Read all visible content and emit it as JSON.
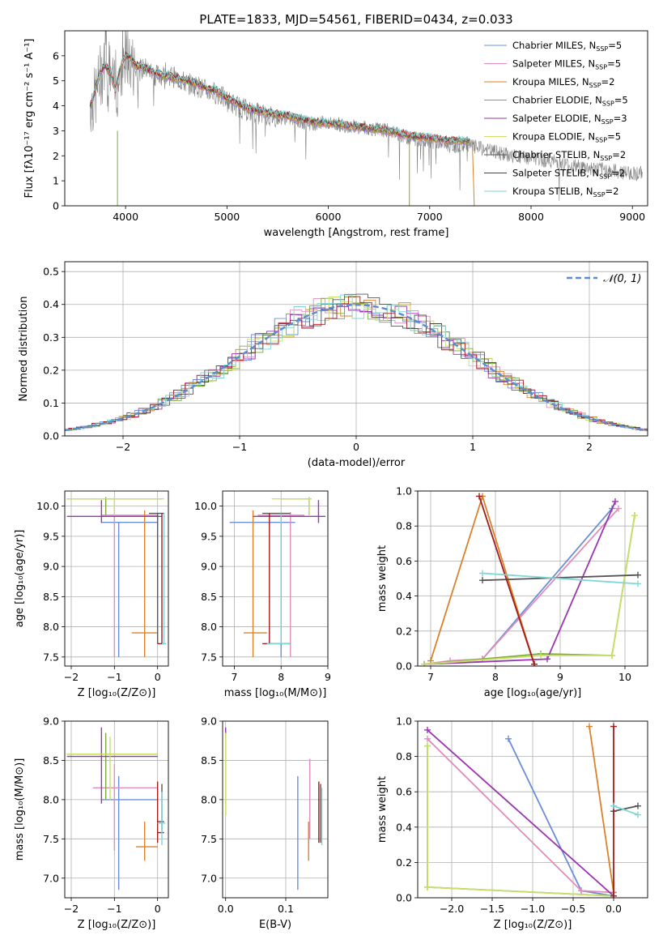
{
  "title": "PLATE=1833, MJD=54561, FIBERID=0434, z=0.033",
  "legend_entries": [
    {
      "label": "Chabrier MILES, N",
      "sub": "SSP",
      "tail": "=5",
      "color": "#6a8fd8"
    },
    {
      "label": "Salpeter MILES, N",
      "sub": "SSP",
      "tail": "=5",
      "color": "#e08cbc"
    },
    {
      "label": "Kroupa MILES, N",
      "sub": "SSP",
      "tail": "=2",
      "color": "#d9822b"
    },
    {
      "label": "Chabrier ELODIE, N",
      "sub": "SSP",
      "tail": "=5",
      "color": "#7aab3c"
    },
    {
      "label": "Salpeter ELODIE, N",
      "sub": "SSP",
      "tail": "=3",
      "color": "#9b36b0"
    },
    {
      "label": "Kroupa ELODIE, N",
      "sub": "SSP",
      "tail": "=5",
      "color": "#c8e06a"
    },
    {
      "label": "Chabrier STELIB, N",
      "sub": "SSP",
      "tail": "=2",
      "color": "#555555"
    },
    {
      "label": "Salpeter STELIB, N",
      "sub": "SSP",
      "tail": "=2",
      "color": "#a31a1a"
    },
    {
      "label": "Kroupa STELIB, N",
      "sub": "SSP",
      "tail": "=2",
      "color": "#7fd6d6"
    }
  ],
  "chart_data": [
    {
      "id": "spectrum",
      "type": "line",
      "xlabel": "wavelength [Angstrom, rest frame]",
      "ylabel": "Flux [fλ10⁻¹⁷ erg cm⁻² s⁻¹ A⁻¹]",
      "xlim": [
        3400,
        9150
      ],
      "ylim": [
        0,
        7
      ],
      "xticks": [
        4000,
        5000,
        6000,
        7000,
        8000,
        9000
      ],
      "yticks": [
        0,
        1,
        2,
        3,
        4,
        5,
        6
      ],
      "data_color": "#808080",
      "data": {
        "x": [
          3650,
          3700,
          3750,
          3800,
          3850,
          3900,
          3950,
          4000,
          4050,
          4100,
          4200,
          4300,
          4400,
          4500,
          4600,
          4700,
          4800,
          4900,
          5000,
          5200,
          5400,
          5600,
          5800,
          6000,
          6200,
          6400,
          6600,
          6800,
          7000,
          7200,
          7400,
          7600,
          7800,
          8000,
          8200,
          8400,
          8600,
          8800,
          9000,
          9100
        ],
        "y": [
          4.0,
          4.3,
          5.2,
          5.6,
          5.4,
          4.4,
          5.5,
          5.9,
          5.8,
          5.4,
          5.5,
          5.2,
          5.3,
          5.1,
          4.9,
          4.8,
          4.6,
          4.5,
          4.2,
          3.8,
          3.6,
          3.5,
          3.3,
          3.3,
          3.2,
          3.1,
          3.0,
          2.7,
          2.6,
          2.4,
          2.4,
          2.2,
          2.0,
          1.9,
          1.8,
          1.6,
          1.5,
          1.4,
          1.3,
          1.3
        ]
      },
      "model": {
        "x": [
          3650,
          3700,
          3750,
          3800,
          3850,
          3900,
          3950,
          4000,
          4050,
          4100,
          4200,
          4300,
          4400,
          4500,
          4600,
          4700,
          4800,
          4900,
          5000,
          5200,
          5400,
          5600,
          5800,
          6000,
          6200,
          6400,
          6600,
          6800,
          7000,
          7200,
          7400
        ],
        "y": [
          4.0,
          4.6,
          5.4,
          5.6,
          5.3,
          4.6,
          5.6,
          6.0,
          5.9,
          5.6,
          5.5,
          5.3,
          5.2,
          5.1,
          5.0,
          4.9,
          4.7,
          4.6,
          4.3,
          3.9,
          3.7,
          3.6,
          3.4,
          3.3,
          3.2,
          3.1,
          3.0,
          2.8,
          2.7,
          2.6,
          2.6
        ]
      }
    },
    {
      "id": "residuals",
      "type": "step",
      "xlabel": "(data-model)/error",
      "ylabel": "Normed distribution",
      "xlim": [
        -2.5,
        2.5
      ],
      "ylim": [
        0,
        0.53
      ],
      "xticks": [
        -2,
        -1,
        0,
        1,
        2
      ],
      "yticks": [
        0.0,
        0.1,
        0.2,
        0.3,
        0.4,
        0.5
      ],
      "legend": "𝒩(0, 1)",
      "gaussian": {
        "mu": 0,
        "sigma": 1
      }
    },
    {
      "id": "age-vs-Z",
      "type": "scatter",
      "xlabel": "Z [log₁₀(Z/Z⊙)]",
      "ylabel": "age  [log₁₀(age/yr)]",
      "xlim": [
        -2.15,
        0.25
      ],
      "ylim": [
        7.35,
        10.25
      ],
      "xticks": [
        -2,
        -1,
        0
      ],
      "yticks": [
        7.5,
        8.0,
        8.5,
        9.0,
        9.5,
        10.0
      ],
      "points": [
        {
          "x": -0.9,
          "y": 9.73,
          "xlo": -1.3,
          "xhi": 0.0,
          "ylo": 7.5,
          "yhi": 9.73,
          "color": "#6a8fd8"
        },
        {
          "x": -1.0,
          "y": 9.85,
          "xlo": -1.3,
          "xhi": 0.0,
          "ylo": 7.5,
          "yhi": 10.05,
          "color": "#e08cbc"
        },
        {
          "x": -0.3,
          "y": 7.9,
          "xlo": -0.6,
          "xhi": 0.0,
          "ylo": 7.5,
          "yhi": 9.93,
          "color": "#d9822b"
        },
        {
          "x": -1.2,
          "y": 10.12,
          "xlo": -2.1,
          "xhi": 0.1,
          "ylo": 9.85,
          "yhi": 10.15,
          "color": "#7aab3c"
        },
        {
          "x": -1.3,
          "y": 9.83,
          "xlo": -2.1,
          "xhi": 0.1,
          "ylo": 9.72,
          "yhi": 10.1,
          "color": "#9b36b0"
        },
        {
          "x": -1.0,
          "y": 10.12,
          "xlo": -2.1,
          "xhi": 0.15,
          "ylo": 9.85,
          "yhi": 10.15,
          "color": "#c8e06a"
        },
        {
          "x": 0.0,
          "y": 9.88,
          "xlo": -0.2,
          "xhi": 0.15,
          "ylo": 7.72,
          "yhi": 9.88,
          "color": "#555555"
        },
        {
          "x": 0.1,
          "y": 7.72,
          "xlo": 0.0,
          "xhi": 0.15,
          "ylo": 7.72,
          "yhi": 9.88,
          "color": "#a31a1a"
        },
        {
          "x": 0.15,
          "y": 7.72,
          "xlo": 0.1,
          "xhi": 0.2,
          "ylo": 7.72,
          "yhi": 9.88,
          "color": "#7fd6d6"
        }
      ]
    },
    {
      "id": "age-vs-mass",
      "type": "scatter",
      "xlabel": "mass [log₁₀(M/M⊙)]",
      "ylabel": "",
      "xlim": [
        6.75,
        9.0
      ],
      "ylim": [
        7.35,
        10.25
      ],
      "xticks": [
        7,
        8,
        9
      ],
      "yticks": [
        7.5,
        8.0,
        8.5,
        9.0,
        9.5,
        10.0
      ],
      "points": [
        {
          "x": 8.0,
          "y": 9.73,
          "xlo": 6.9,
          "xhi": 8.3,
          "ylo": 7.5,
          "yhi": 9.73,
          "color": "#6a8fd8"
        },
        {
          "x": 8.2,
          "y": 9.85,
          "xlo": 7.5,
          "xhi": 8.5,
          "ylo": 7.5,
          "yhi": 9.9,
          "color": "#e08cbc"
        },
        {
          "x": 7.4,
          "y": 7.9,
          "xlo": 7.2,
          "xhi": 7.7,
          "ylo": 7.5,
          "yhi": 9.93,
          "color": "#d9822b"
        },
        {
          "x": 8.6,
          "y": 10.12,
          "xlo": 8.0,
          "xhi": 8.65,
          "ylo": 9.85,
          "yhi": 10.15,
          "color": "#7aab3c"
        },
        {
          "x": 8.8,
          "y": 9.83,
          "xlo": 7.4,
          "xhi": 8.95,
          "ylo": 9.72,
          "yhi": 10.1,
          "color": "#9b36b0"
        },
        {
          "x": 8.6,
          "y": 10.12,
          "xlo": 7.8,
          "xhi": 8.65,
          "ylo": 9.85,
          "yhi": 10.15,
          "color": "#c8e06a"
        },
        {
          "x": 8.0,
          "y": 9.88,
          "xlo": 7.6,
          "xhi": 8.2,
          "ylo": 7.72,
          "yhi": 9.88,
          "color": "#555555"
        },
        {
          "x": 7.75,
          "y": 7.72,
          "xlo": 7.6,
          "xhi": 8.2,
          "ylo": 7.72,
          "yhi": 9.88,
          "color": "#a31a1a"
        },
        {
          "x": 8.0,
          "y": 7.72,
          "xlo": 7.7,
          "xhi": 8.2,
          "ylo": 7.72,
          "yhi": 9.88,
          "color": "#7fd6d6"
        }
      ]
    },
    {
      "id": "weight-vs-age",
      "type": "line",
      "xlabel": "age  [log₁₀(age/yr)]",
      "ylabel": "mass weight",
      "xlim": [
        6.8,
        10.35
      ],
      "ylim": [
        0,
        1.0
      ],
      "xticks": [
        7,
        8,
        9,
        10
      ],
      "yticks": [
        0.0,
        0.2,
        0.4,
        0.6,
        0.8,
        1.0
      ],
      "series": [
        {
          "color": "#6a8fd8",
          "x": [
            6.9,
            7.8,
            9.8
          ],
          "y": [
            0.01,
            0.04,
            0.9
          ]
        },
        {
          "color": "#e08cbc",
          "x": [
            6.9,
            7.3,
            7.8,
            9.9
          ],
          "y": [
            0.01,
            0.03,
            0.04,
            0.9
          ]
        },
        {
          "color": "#d9822b",
          "x": [
            7.0,
            7.8,
            8.6
          ],
          "y": [
            0.03,
            0.97,
            0.01
          ]
        },
        {
          "color": "#7aab3c",
          "x": [
            6.9,
            8.7,
            9.8,
            10.15
          ],
          "y": [
            0.01,
            0.07,
            0.06,
            0.86
          ]
        },
        {
          "color": "#9b36b0",
          "x": [
            6.9,
            8.8,
            9.85
          ],
          "y": [
            0.01,
            0.04,
            0.94
          ]
        },
        {
          "color": "#c8e06a",
          "x": [
            6.9,
            8.7,
            9.8,
            10.15
          ],
          "y": [
            0.01,
            0.06,
            0.06,
            0.86
          ]
        },
        {
          "color": "#555555",
          "x": [
            7.8,
            10.2
          ],
          "y": [
            0.49,
            0.52
          ]
        },
        {
          "color": "#a31a1a",
          "x": [
            7.75,
            8.6
          ],
          "y": [
            0.97,
            0.01
          ]
        },
        {
          "color": "#7fd6d6",
          "x": [
            7.8,
            10.2
          ],
          "y": [
            0.53,
            0.47
          ]
        }
      ]
    },
    {
      "id": "mass-vs-Z",
      "type": "scatter",
      "xlabel": "Z [log₁₀(Z/Z⊙)]",
      "ylabel": "mass [log₁₀(M/M⊙)]",
      "xlim": [
        -2.15,
        0.25
      ],
      "ylim": [
        6.75,
        9.0
      ],
      "xticks": [
        -2,
        -1,
        0
      ],
      "yticks": [
        7.0,
        7.5,
        8.0,
        8.5,
        9.0
      ],
      "points": [
        {
          "x": -0.9,
          "y": 8.0,
          "xlo": -1.3,
          "xhi": 0.0,
          "ylo": 6.85,
          "yhi": 8.3,
          "color": "#6a8fd8"
        },
        {
          "x": -1.0,
          "y": 8.15,
          "xlo": -1.5,
          "xhi": 0.0,
          "ylo": 7.35,
          "yhi": 8.45,
          "color": "#e08cbc"
        },
        {
          "x": -0.3,
          "y": 7.4,
          "xlo": -0.5,
          "xhi": 0.0,
          "ylo": 7.22,
          "yhi": 7.72,
          "color": "#d9822b"
        },
        {
          "x": -1.2,
          "y": 8.58,
          "xlo": -2.1,
          "xhi": 0.0,
          "ylo": 8.0,
          "yhi": 8.85,
          "color": "#7aab3c"
        },
        {
          "x": -1.3,
          "y": 8.55,
          "xlo": -2.1,
          "xhi": 0.0,
          "ylo": 7.95,
          "yhi": 8.92,
          "color": "#9b36b0"
        },
        {
          "x": -1.1,
          "y": 8.58,
          "xlo": -2.1,
          "xhi": 0.0,
          "ylo": 8.0,
          "yhi": 8.8,
          "color": "#c8e06a"
        },
        {
          "x": 0.1,
          "y": 7.72,
          "xlo": 0.0,
          "xhi": 0.15,
          "ylo": 7.6,
          "yhi": 8.2,
          "color": "#555555"
        },
        {
          "x": 0.0,
          "y": 7.58,
          "xlo": 0.0,
          "xhi": 0.15,
          "ylo": 7.45,
          "yhi": 8.23,
          "color": "#a31a1a"
        },
        {
          "x": 0.1,
          "y": 7.7,
          "xlo": 0.0,
          "xhi": 0.18,
          "ylo": 7.42,
          "yhi": 8.1,
          "color": "#7fd6d6"
        }
      ]
    },
    {
      "id": "mass-vs-EBV",
      "type": "scatter",
      "xlabel": "E(B-V)",
      "ylabel": "",
      "xlim": [
        -0.005,
        0.17
      ],
      "ylim": [
        6.75,
        9.0
      ],
      "xticks": [
        0.0,
        0.1
      ],
      "yticks": [
        7.0,
        7.5,
        8.0,
        8.5,
        9.0
      ],
      "points": [
        {
          "x": 0.12,
          "y": 7.58,
          "ylo": 6.85,
          "yhi": 8.3,
          "color": "#6a8fd8"
        },
        {
          "x": 0.14,
          "y": 8.0,
          "ylo": 7.5,
          "yhi": 8.52,
          "color": "#e08cbc"
        },
        {
          "x": 0.138,
          "y": 7.45,
          "ylo": 7.22,
          "yhi": 7.72,
          "color": "#d9822b"
        },
        {
          "x": 0.0,
          "y": 8.58,
          "ylo": 7.8,
          "yhi": 8.88,
          "color": "#7aab3c"
        },
        {
          "x": 0.0,
          "y": 8.85,
          "ylo": 8.8,
          "yhi": 8.92,
          "color": "#9b36b0"
        },
        {
          "x": 0.0,
          "y": 8.4,
          "ylo": 7.8,
          "yhi": 8.85,
          "color": "#c8e06a"
        },
        {
          "x": 0.158,
          "y": 7.7,
          "ylo": 7.45,
          "yhi": 8.2,
          "color": "#555555"
        },
        {
          "x": 0.155,
          "y": 7.8,
          "ylo": 7.45,
          "yhi": 8.23,
          "color": "#a31a1a"
        },
        {
          "x": 0.16,
          "y": 7.8,
          "ylo": 7.42,
          "yhi": 8.15,
          "color": "#7fd6d6"
        }
      ]
    },
    {
      "id": "weight-vs-Z",
      "type": "line",
      "xlabel": "Z [log₁₀(Z/Z⊙)]",
      "ylabel": "mass weight",
      "xlim": [
        -2.42,
        0.42
      ],
      "ylim": [
        0,
        1.0
      ],
      "xticks": [
        -2.0,
        -1.5,
        -1.0,
        -0.5,
        0.0
      ],
      "yticks": [
        0.0,
        0.2,
        0.4,
        0.6,
        0.8,
        1.0
      ],
      "series": [
        {
          "color": "#6a8fd8",
          "x": [
            -1.3,
            -0.4,
            0.0
          ],
          "y": [
            0.9,
            0.04,
            0.01
          ]
        },
        {
          "color": "#e08cbc",
          "x": [
            -2.3,
            -0.4,
            0.0
          ],
          "y": [
            0.9,
            0.04,
            0.03
          ]
        },
        {
          "color": "#d9822b",
          "x": [
            -0.3,
            0.0,
            0.0
          ],
          "y": [
            0.97,
            0.03,
            0.01
          ]
        },
        {
          "color": "#7aab3c",
          "x": [
            -2.3,
            -2.3,
            0.0
          ],
          "y": [
            0.86,
            0.06,
            0.01
          ]
        },
        {
          "color": "#9b36b0",
          "x": [
            -2.3,
            0.0
          ],
          "y": [
            0.95,
            0.01
          ]
        },
        {
          "color": "#c8e06a",
          "x": [
            -2.3,
            -2.3,
            0.0
          ],
          "y": [
            0.86,
            0.06,
            0.01
          ]
        },
        {
          "color": "#555555",
          "x": [
            0.0,
            0.3
          ],
          "y": [
            0.49,
            0.52
          ]
        },
        {
          "color": "#a31a1a",
          "x": [
            0.0,
            0.0
          ],
          "y": [
            0.97,
            0.01
          ]
        },
        {
          "color": "#7fd6d6",
          "x": [
            0.0,
            0.3
          ],
          "y": [
            0.52,
            0.47
          ]
        }
      ]
    }
  ]
}
